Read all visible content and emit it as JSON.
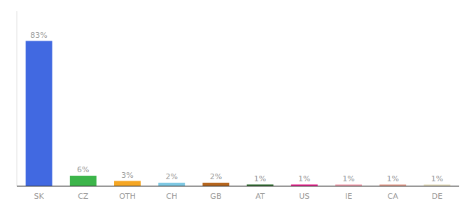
{
  "chart_data": {
    "type": "bar",
    "categories": [
      "SK",
      "CZ",
      "OTH",
      "CH",
      "GB",
      "AT",
      "US",
      "IE",
      "CA",
      "DE"
    ],
    "values": [
      83,
      6,
      3,
      2,
      2,
      1,
      1,
      1,
      1,
      1
    ],
    "value_labels": [
      "83%",
      "6%",
      "3%",
      "2%",
      "2%",
      "1%",
      "1%",
      "1%",
      "1%",
      "1%"
    ],
    "colors": [
      "#4169e1",
      "#3cb54a",
      "#f5a623",
      "#7ec8e3",
      "#b5651d",
      "#2d6a2d",
      "#e91e8c",
      "#f4a0b0",
      "#e8a090",
      "#e8e0c0"
    ],
    "ylim": [
      0,
      100
    ],
    "data_labels": true,
    "tick_labels": "x",
    "grid": false
  }
}
